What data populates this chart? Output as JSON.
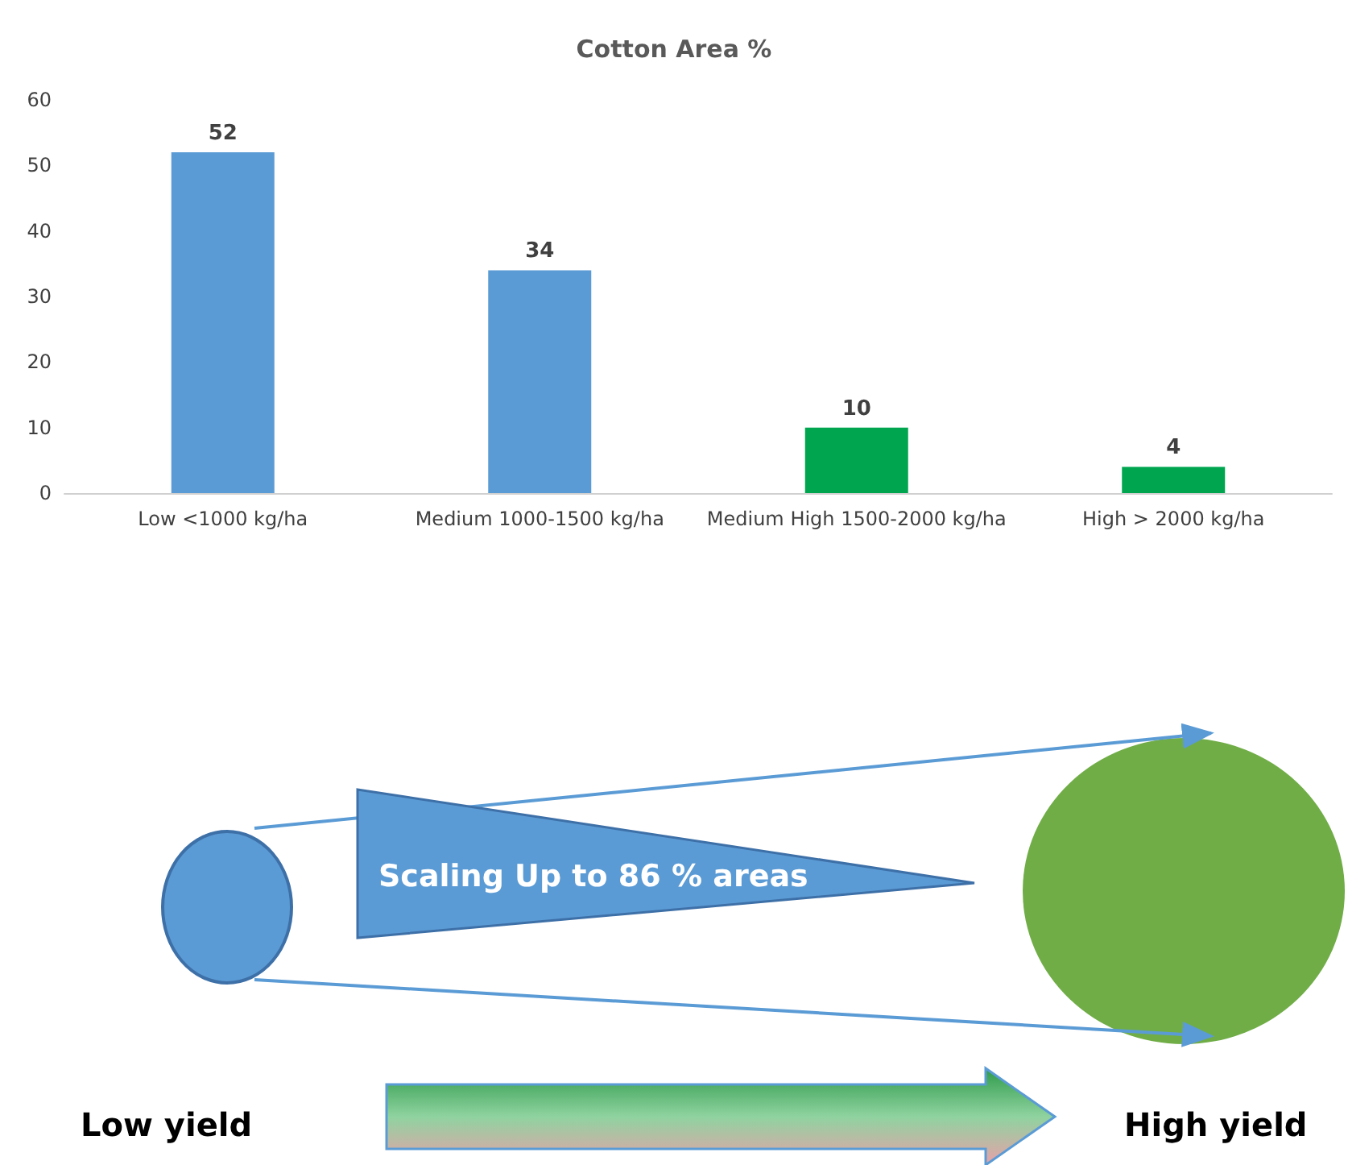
{
  "chart_data": {
    "type": "bar",
    "title": "Cotton Area %",
    "categories": [
      "Low <1000 kg/ha",
      "Medium 1000-1500 kg/ha",
      "Medium High 1500-2000 kg/ha",
      "High > 2000 kg/ha"
    ],
    "values": [
      52,
      34,
      10,
      4
    ],
    "colors": [
      "#5b9bd5",
      "#5b9bd5",
      "#00a64f",
      "#00a64f"
    ],
    "ylim": [
      0,
      60
    ],
    "yticks": [
      0,
      10,
      20,
      30,
      40,
      50,
      60
    ],
    "grid": false,
    "data_labels": true,
    "annotations": [
      "Scaling Up to 86 % areas",
      "Low yield",
      "High yield"
    ]
  }
}
